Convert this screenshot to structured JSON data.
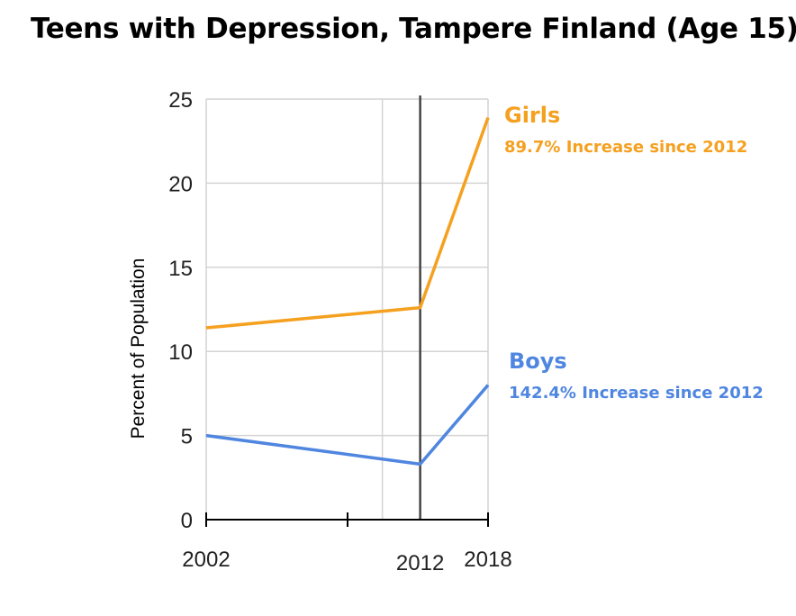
{
  "title": "Teens with Depression, Tampere Finland (Age 15)",
  "chart_data": {
    "type": "line",
    "title": "Teens with Depression, Tampere Finland (Age 15)",
    "xlabel": "",
    "ylabel": "Percent of Population",
    "x": [
      2002,
      2012,
      2018
    ],
    "x_tick_labels": [
      "2002",
      "2012",
      "2018"
    ],
    "y_ticks": [
      0,
      5,
      10,
      15,
      20,
      25
    ],
    "ylim": [
      0,
      25
    ],
    "grid": true,
    "reference_line_x": 2012,
    "series": [
      {
        "name": "Girls",
        "color": "#f5a01f",
        "values": [
          11.4,
          12.6,
          23.9
        ],
        "annotation": "89.7% Increase since 2012"
      },
      {
        "name": "Boys",
        "color": "#4f86e0",
        "values": [
          5.0,
          3.3,
          8.0
        ],
        "annotation": "142.4% Increase since 2012"
      }
    ]
  }
}
